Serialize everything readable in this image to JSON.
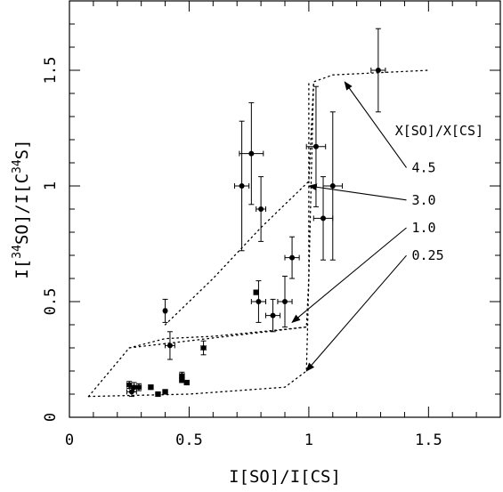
{
  "chart_data": {
    "type": "scatter",
    "xlabel": "I[SO]/I[CS]",
    "ylabel_parts": [
      "I[",
      "34",
      "SO]/I[C",
      "34",
      "S]"
    ],
    "xlim": [
      0,
      1.8
    ],
    "ylim": [
      0,
      1.8
    ],
    "xticks": [
      {
        "value": 0,
        "label": "0"
      },
      {
        "value": 0.5,
        "label": "0.5"
      },
      {
        "value": 1,
        "label": "1"
      },
      {
        "value": 1.5,
        "label": "1.5"
      }
    ],
    "yticks": [
      {
        "value": 0,
        "label": "0"
      },
      {
        "value": 0.5,
        "label": "0.5"
      },
      {
        "value": 1,
        "label": "1"
      },
      {
        "value": 1.5,
        "label": "1.5"
      }
    ],
    "minor_tick_step": 0.1,
    "points": [
      {
        "x": 1.29,
        "y": 1.5,
        "xerr": 0.03,
        "yerr": 0.18
      },
      {
        "x": 1.03,
        "y": 1.17,
        "xerr": 0.04,
        "yerr": 0.26
      },
      {
        "x": 1.1,
        "y": 1.0,
        "xerr": 0.04,
        "yerr": 0.32
      },
      {
        "x": 1.06,
        "y": 0.86,
        "xerr": 0.04,
        "yerr": 0.18
      },
      {
        "x": 0.76,
        "y": 1.14,
        "xerr": 0.05,
        "yerr": 0.22
      },
      {
        "x": 0.72,
        "y": 1.0,
        "xerr": 0.03,
        "yerr": 0.28
      },
      {
        "x": 0.8,
        "y": 0.9,
        "xerr": 0.02,
        "yerr": 0.14
      },
      {
        "x": 0.93,
        "y": 0.69,
        "xerr": 0.03,
        "yerr": 0.09
      },
      {
        "x": 0.78,
        "y": 0.54,
        "xerr": 0.01,
        "yerr": 0.01
      },
      {
        "x": 0.79,
        "y": 0.5,
        "xerr": 0.03,
        "yerr": 0.09
      },
      {
        "x": 0.9,
        "y": 0.5,
        "xerr": 0.03,
        "yerr": 0.11
      },
      {
        "x": 0.85,
        "y": 0.44,
        "xerr": 0.03,
        "yerr": 0.07
      },
      {
        "x": 0.4,
        "y": 0.46,
        "xerr": 0.005,
        "yerr": 0.05
      },
      {
        "x": 0.42,
        "y": 0.31,
        "xerr": 0.02,
        "yerr": 0.06
      },
      {
        "x": 0.56,
        "y": 0.3,
        "xerr": 0.01,
        "yerr": 0.03
      },
      {
        "x": 0.47,
        "y": 0.18,
        "xerr": 0.01,
        "yerr": 0.015
      },
      {
        "x": 0.47,
        "y": 0.16,
        "xerr": 0.01,
        "yerr": 0.01
      },
      {
        "x": 0.49,
        "y": 0.15,
        "xerr": 0.01,
        "yerr": 0.01
      },
      {
        "x": 0.25,
        "y": 0.14,
        "xerr": 0.01,
        "yerr": 0.015
      },
      {
        "x": 0.27,
        "y": 0.13,
        "xerr": 0.02,
        "yerr": 0.02
      },
      {
        "x": 0.29,
        "y": 0.13,
        "xerr": 0.01,
        "yerr": 0.015
      },
      {
        "x": 0.26,
        "y": 0.11,
        "xerr": 0.02,
        "yerr": 0.02
      },
      {
        "x": 0.34,
        "y": 0.13,
        "xerr": 0.01,
        "yerr": 0.01
      },
      {
        "x": 0.37,
        "y": 0.1,
        "xerr": 0.01,
        "yerr": 0.01
      },
      {
        "x": 0.4,
        "y": 0.11,
        "xerr": 0.01,
        "yerr": 0.01
      }
    ],
    "model_curves": [
      {
        "label": "4.5",
        "points": [
          [
            0.4,
            0.4
          ],
          [
            0.6,
            0.6
          ],
          [
            0.8,
            0.82
          ],
          [
            1.0,
            1.02
          ],
          [
            1.02,
            1.45
          ],
          [
            1.1,
            1.48
          ],
          [
            1.5,
            1.5
          ]
        ]
      },
      {
        "label": "3.0",
        "points": [
          [
            0.25,
            0.3
          ],
          [
            0.4,
            0.34
          ],
          [
            0.6,
            0.35
          ],
          [
            0.8,
            0.37
          ],
          [
            0.99,
            0.39
          ],
          [
            1.0,
            0.6
          ],
          [
            1.0,
            1.45
          ]
        ]
      },
      {
        "label": "1.0",
        "points": [
          [
            0.08,
            0.09
          ],
          [
            0.25,
            0.3
          ],
          [
            0.99,
            0.39
          ]
        ]
      },
      {
        "label": "0.25",
        "points": [
          [
            0.08,
            0.09
          ],
          [
            0.5,
            0.1
          ],
          [
            0.9,
            0.13
          ],
          [
            0.99,
            0.2
          ],
          [
            1.0,
            0.6
          ],
          [
            1.02,
            1.45
          ]
        ]
      }
    ],
    "annotation_title": "X[SO]/X[CS]",
    "annotations": [
      {
        "label": "4.5",
        "target": [
          1.15,
          1.45
        ],
        "label_x": 1.43,
        "label_y": 1.06
      },
      {
        "label": "3.0",
        "target": [
          1.0,
          1.0
        ],
        "label_x": 1.43,
        "label_y": 0.92
      },
      {
        "label": "1.0",
        "target": [
          0.93,
          0.41
        ],
        "label_x": 1.43,
        "label_y": 0.8
      },
      {
        "label": "0.25",
        "target": [
          0.99,
          0.2
        ],
        "label_x": 1.43,
        "label_y": 0.68
      }
    ],
    "annotation_title_pos": [
      1.36,
      1.22
    ]
  }
}
